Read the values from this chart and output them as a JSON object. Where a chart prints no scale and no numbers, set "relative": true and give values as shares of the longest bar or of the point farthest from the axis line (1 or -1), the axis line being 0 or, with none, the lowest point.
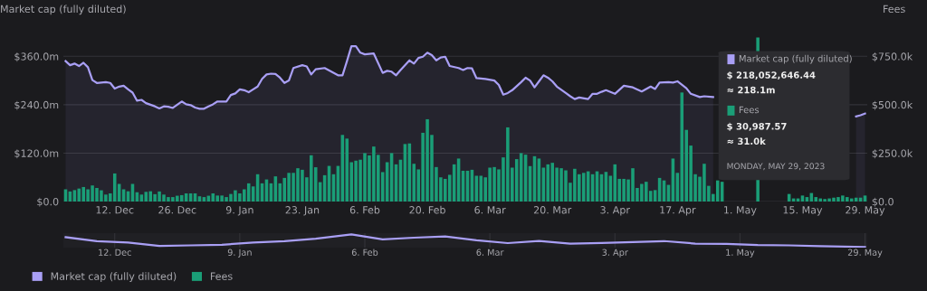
{
  "chart_data": [
    {
      "type": "bar",
      "ylabel": "Market cap (fully diluted)",
      "y2label": "Fees",
      "x": [
        "2022-12-01",
        "2022-12-02",
        "2022-12-03",
        "2022-12-04",
        "2022-12-05",
        "2022-12-06",
        "2022-12-07",
        "2022-12-08",
        "2022-12-09",
        "2022-12-10",
        "2022-12-11",
        "2022-12-12",
        "2022-12-13",
        "2022-12-14",
        "2022-12-15",
        "2022-12-16",
        "2022-12-17",
        "2022-12-18",
        "2022-12-19",
        "2022-12-20",
        "2022-12-21",
        "2022-12-22",
        "2022-12-23",
        "2022-12-24",
        "2022-12-25",
        "2022-12-26",
        "2022-12-27",
        "2022-12-28",
        "2022-12-29",
        "2022-12-30",
        "2022-12-31",
        "2023-01-01",
        "2023-01-02",
        "2023-01-03",
        "2023-01-04",
        "2023-01-05",
        "2023-01-06",
        "2023-01-07",
        "2023-01-08",
        "2023-01-09",
        "2023-01-10",
        "2023-01-11",
        "2023-01-12",
        "2023-01-13",
        "2023-01-14",
        "2023-01-15",
        "2023-01-16",
        "2023-01-17",
        "2023-01-18",
        "2023-01-19",
        "2023-01-20",
        "2023-01-21",
        "2023-01-22",
        "2023-01-23",
        "2023-01-24",
        "2023-01-25",
        "2023-01-26",
        "2023-01-27",
        "2023-01-28",
        "2023-01-29",
        "2023-01-30",
        "2023-01-31",
        "2023-02-01",
        "2023-02-02",
        "2023-02-03",
        "2023-02-04",
        "2023-02-05",
        "2023-02-06",
        "2023-02-07",
        "2023-02-08",
        "2023-02-09",
        "2023-02-10",
        "2023-02-11",
        "2023-02-12",
        "2023-02-13",
        "2023-02-14",
        "2023-02-15",
        "2023-02-16",
        "2023-02-17",
        "2023-02-18",
        "2023-02-19",
        "2023-02-20",
        "2023-02-21",
        "2023-02-22",
        "2023-02-23",
        "2023-02-24",
        "2023-02-25",
        "2023-02-26",
        "2023-02-27",
        "2023-02-28",
        "2023-03-01",
        "2023-03-02",
        "2023-03-03",
        "2023-03-04",
        "2023-03-05",
        "2023-03-06",
        "2023-03-07",
        "2023-03-08",
        "2023-03-09",
        "2023-03-10",
        "2023-03-11",
        "2023-03-12",
        "2023-03-13",
        "2023-03-14",
        "2023-03-15",
        "2023-03-16",
        "2023-03-17",
        "2023-03-18",
        "2023-03-19",
        "2023-03-20",
        "2023-03-21",
        "2023-03-22",
        "2023-03-23",
        "2023-03-24",
        "2023-03-25",
        "2023-03-26",
        "2023-03-27",
        "2023-03-28",
        "2023-03-29",
        "2023-03-30",
        "2023-03-31",
        "2023-04-01",
        "2023-04-02",
        "2023-04-03",
        "2023-04-04",
        "2023-04-05",
        "2023-04-06",
        "2023-04-07",
        "2023-04-08",
        "2023-04-09",
        "2023-04-10",
        "2023-04-11",
        "2023-04-12",
        "2023-04-13",
        "2023-04-14",
        "2023-04-15",
        "2023-04-16",
        "2023-04-17",
        "2023-04-18",
        "2023-04-19",
        "2023-04-20",
        "2023-04-21",
        "2023-04-22",
        "2023-04-23",
        "2023-04-24",
        "2023-04-25",
        "2023-04-26",
        "2023-04-27",
        "2023-04-28",
        "2023-04-29",
        "2023-04-30",
        "2023-05-01",
        "2023-05-02",
        "2023-05-03",
        "2023-05-04",
        "2023-05-05",
        "2023-05-06",
        "2023-05-07",
        "2023-05-08",
        "2023-05-09",
        "2023-05-10",
        "2023-05-11",
        "2023-05-12",
        "2023-05-13",
        "2023-05-14",
        "2023-05-15",
        "2023-05-16",
        "2023-05-17",
        "2023-05-18",
        "2023-05-19",
        "2023-05-20",
        "2023-05-21",
        "2023-05-22",
        "2023-05-23",
        "2023-05-24",
        "2023-05-25",
        "2023-05-26",
        "2023-05-27",
        "2023-05-28",
        "2023-05-29"
      ],
      "series": [
        {
          "name": "Market cap (fully diluted)",
          "type": "area",
          "color": "#a99ff5",
          "x": [
            "2022-12-01",
            "2022-12-02",
            "2022-12-03",
            "2022-12-04",
            "2022-12-05",
            "2022-12-06",
            "2022-12-07",
            "2022-12-08",
            "2022-12-09",
            "2022-12-10",
            "2022-12-11",
            "2022-12-12",
            "2022-12-13",
            "2022-12-14",
            "2022-12-15",
            "2022-12-16",
            "2022-12-17",
            "2022-12-18",
            "2022-12-19",
            "2022-12-20",
            "2022-12-21",
            "2022-12-22",
            "2022-12-23",
            "2022-12-24",
            "2022-12-25",
            "2022-12-26",
            "2022-12-27",
            "2022-12-28",
            "2022-12-29",
            "2022-12-30",
            "2022-12-31",
            "2023-01-01",
            "2023-01-02",
            "2023-01-03",
            "2023-01-04",
            "2023-01-06",
            "2023-01-07",
            "2023-01-08",
            "2023-01-09",
            "2023-01-10",
            "2023-01-11",
            "2023-01-12",
            "2023-01-13",
            "2023-01-14",
            "2023-01-15",
            "2023-01-16",
            "2023-01-17",
            "2023-01-18",
            "2023-01-19",
            "2023-01-20",
            "2023-01-21",
            "2023-01-23",
            "2023-01-24",
            "2023-01-25",
            "2023-01-26",
            "2023-01-28",
            "2023-01-31",
            "2023-02-01",
            "2023-02-02",
            "2023-02-03",
            "2023-02-04",
            "2023-02-05",
            "2023-02-06",
            "2023-02-08",
            "2023-02-10",
            "2023-02-11",
            "2023-02-12",
            "2023-02-13",
            "2023-02-14",
            "2023-02-16",
            "2023-02-17",
            "2023-02-18",
            "2023-02-19",
            "2023-02-20",
            "2023-02-21",
            "2023-02-22",
            "2023-02-23",
            "2023-02-24",
            "2023-02-25",
            "2023-02-27",
            "2023-02-28",
            "2023-03-01",
            "2023-03-02",
            "2023-03-03",
            "2023-03-05",
            "2023-03-07",
            "2023-03-08",
            "2023-03-09",
            "2023-03-10",
            "2023-03-11",
            "2023-03-13",
            "2023-03-14",
            "2023-03-15",
            "2023-03-16",
            "2023-03-17",
            "2023-03-18",
            "2023-03-19",
            "2023-03-20",
            "2023-03-21",
            "2023-03-23",
            "2023-03-24",
            "2023-03-25",
            "2023-03-26",
            "2023-03-28",
            "2023-03-29",
            "2023-03-30",
            "2023-03-31",
            "2023-04-01",
            "2023-04-03",
            "2023-04-05",
            "2023-04-07",
            "2023-04-09",
            "2023-04-11",
            "2023-04-12",
            "2023-04-13",
            "2023-04-15",
            "2023-04-16",
            "2023-04-17",
            "2023-04-19",
            "2023-04-20",
            "2023-04-22",
            "2023-04-23",
            "2023-04-25",
            "2023-05-10",
            "2023-05-27",
            "2023-05-28",
            "2023-05-29"
          ],
          "values": [
            348,
            338,
            342,
            336,
            344,
            333,
            301,
            294,
            295,
            296,
            294,
            280,
            285,
            287,
            278,
            270,
            250,
            252,
            244,
            240,
            236,
            231,
            236,
            235,
            232,
            240,
            248,
            241,
            239,
            233,
            230,
            230,
            236,
            241,
            248,
            248,
            264,
            268,
            278,
            276,
            271,
            278,
            285,
            304,
            315,
            317,
            316,
            307,
            294,
            300,
            331,
            338,
            335,
            315,
            328,
            331,
            313,
            313,
            348,
            385,
            385,
            369,
            365,
            367,
            319,
            324,
            322,
            313,
            326,
            350,
            342,
            356,
            359,
            369,
            363,
            350,
            357,
            359,
            336,
            331,
            326,
            331,
            330,
            306,
            304,
            300,
            289,
            265,
            269,
            276,
            296,
            307,
            300,
            283,
            298,
            313,
            307,
            298,
            285,
            269,
            261,
            254,
            258,
            254,
            267,
            267,
            272,
            276,
            267,
            287,
            283,
            273,
            285,
            279,
            295,
            296,
            295,
            298,
            281,
            267,
            259,
            261,
            259,
            null,
            211,
            214,
            218.1
          ]
        },
        {
          "name": "Fees",
          "type": "bar",
          "axis": "y2",
          "color": "#1a9e77",
          "values": [
            63,
            52,
            59,
            67,
            75,
            63,
            83,
            70,
            58,
            36,
            42,
            145,
            91,
            63,
            53,
            91,
            48,
            36,
            50,
            53,
            38,
            52,
            36,
            23,
            23,
            30,
            33,
            42,
            42,
            42,
            27,
            23,
            30,
            42,
            31,
            31,
            23,
            39,
            58,
            42,
            63,
            94,
            78,
            141,
            94,
            114,
            94,
            130,
            94,
            122,
            148,
            148,
            172,
            164,
            125,
            239,
            177,
            100,
            136,
            184,
            141,
            184,
            344,
            325,
            203,
            211,
            216,
            250,
            238,
            284,
            241,
            152,
            203,
            250,
            192,
            216,
            297,
            300,
            195,
            166,
            355,
            425,
            344,
            178,
            125,
            117,
            138,
            192,
            222,
            159,
            159,
            164,
            133,
            133,
            125,
            175,
            178,
            166,
            228,
            383,
            175,
            219,
            250,
            242,
            183,
            234,
            222,
            175,
            192,
            200,
            175,
            172,
            161,
            97,
            169,
            141,
            148,
            156,
            141,
            156,
            141,
            153,
            133,
            192,
            117,
            117,
            114,
            172,
            70,
            91,
            102,
            55,
            59,
            122,
            109,
            86,
            222,
            148,
            563,
            370,
            289,
            141,
            128,
            195,
            81,
            39,
            109,
            102,
            null,
            null,
            null,
            null,
            null,
            null,
            null,
            847,
            null,
            null,
            null,
            null,
            null,
            null,
            39,
            16,
            16,
            31,
            23,
            44,
            23,
            16,
            13,
            16,
            20,
            23,
            31,
            23,
            16,
            20,
            20,
            31.0
          ]
        }
      ],
      "xlim": [
        "2022-11-30T12:00",
        "2023-05-29T12:00"
      ],
      "xticks": [
        {
          "value": "2022-12-12",
          "label": "12. Dec"
        },
        {
          "value": "2022-12-26",
          "label": "26. Dec"
        },
        {
          "value": "2023-01-09",
          "label": "9. Jan"
        },
        {
          "value": "2023-01-23",
          "label": "23. Jan"
        },
        {
          "value": "2023-02-06",
          "label": "6. Feb"
        },
        {
          "value": "2023-02-20",
          "label": "20. Feb"
        },
        {
          "value": "2023-03-06",
          "label": "6. Mar"
        },
        {
          "value": "2023-03-20",
          "label": "20. Mar"
        },
        {
          "value": "2023-04-03",
          "label": "3. Apr"
        },
        {
          "value": "2023-04-17",
          "label": "17. Apr"
        },
        {
          "value": "2023-05-01",
          "label": "1. May"
        },
        {
          "value": "2023-05-15",
          "label": "15. May"
        },
        {
          "value": "2023-05-29",
          "label": "29. May"
        }
      ],
      "ylim": [
        0,
        410
      ],
      "yticks": [
        {
          "value": 0,
          "label": "$0.0"
        },
        {
          "value": 120,
          "label": "$120.0m"
        },
        {
          "value": 240,
          "label": "$240.0m"
        },
        {
          "value": 360,
          "label": "$360.0m"
        }
      ],
      "y2lim": [
        0,
        854
      ],
      "y2ticks": [
        {
          "value": 0,
          "label": "$0.0"
        },
        {
          "value": 250,
          "label": "$250.0k"
        },
        {
          "value": 500,
          "label": "$500.0k"
        },
        {
          "value": 750,
          "label": "$750.0k"
        }
      ],
      "grid": "y",
      "legend": "bottom left",
      "annotations": [
        "Market cap (fully diluted)",
        "$ 218,052,646.44",
        "≈ 218.1m",
        "Fees",
        "$ 30,987.57",
        "≈ 31.0k",
        "MONDAY, MAY 29, 2023"
      ]
    },
    {
      "type": "line",
      "relative": true,
      "tick_labels": "x",
      "grid": "x",
      "series": [
        {
          "color": "#a99ff5",
          "x": [
            "2022-12-01",
            "2022-12-08",
            "2022-12-15",
            "2022-12-22",
            "2022-12-29",
            "2023-01-05",
            "2023-01-12",
            "2023-01-19",
            "2023-01-26",
            "2023-02-03",
            "2023-02-10",
            "2023-02-17",
            "2023-02-24",
            "2023-03-03",
            "2023-03-10",
            "2023-03-17",
            "2023-03-24",
            "2023-03-31",
            "2023-04-07",
            "2023-04-14",
            "2023-04-21",
            "2023-04-28",
            "2023-05-05",
            "2023-05-12",
            "2023-05-19",
            "2023-05-29"
          ],
          "values": [
            0.78,
            0.46,
            0.36,
            0.08,
            0.13,
            0.18,
            0.36,
            0.46,
            0.66,
            1,
            0.6,
            0.74,
            0.84,
            0.53,
            0.31,
            0.48,
            0.26,
            0.32,
            0.39,
            0.47,
            0.27,
            0.25,
            0.16,
            0.13,
            0.07,
            0
          ]
        }
      ],
      "xlim": [
        "2022-11-30T12:00",
        "2023-05-29T12:00"
      ],
      "xticks": [
        {
          "value": "2022-12-12",
          "label": "12. Dec"
        },
        {
          "value": "2023-01-09",
          "label": "9. Jan"
        },
        {
          "value": "2023-02-06",
          "label": "6. Feb"
        },
        {
          "value": "2023-03-06",
          "label": "6. Mar"
        },
        {
          "value": "2023-04-03",
          "label": "3. Apr"
        },
        {
          "value": "2023-05-01",
          "label": "1. May"
        },
        {
          "value": "2023-05-29",
          "label": "29. May"
        }
      ]
    }
  ]
}
